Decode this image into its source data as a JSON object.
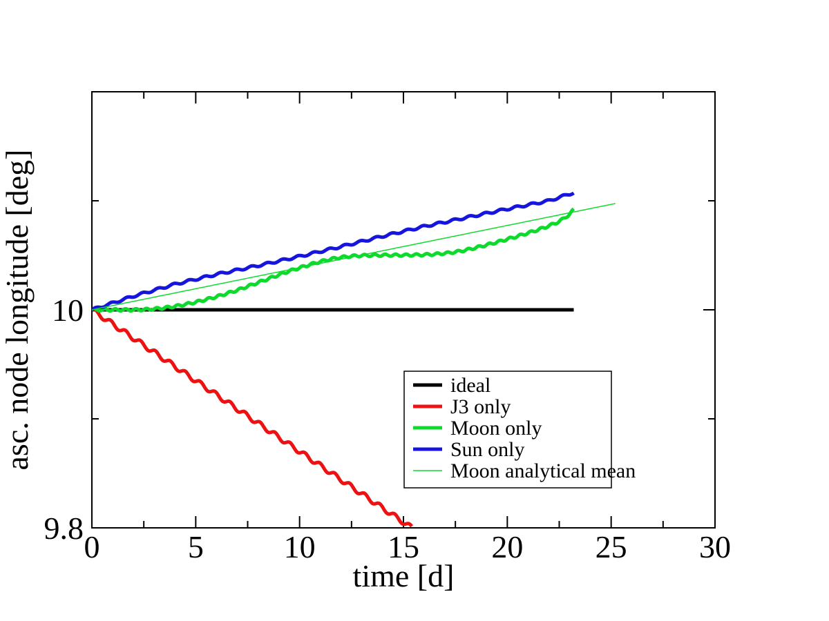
{
  "figure": {
    "background": "#ffffff",
    "frame_color": "#000000"
  },
  "axes": {
    "x": {
      "label": "time [d]",
      "range": [
        0,
        30
      ],
      "major_ticks": [
        0,
        5,
        10,
        15,
        20,
        25,
        30
      ],
      "major_tick_labels": [
        "0",
        "5",
        "10",
        "15",
        "20",
        "25",
        "30"
      ],
      "minor_ticks": [
        2.5,
        7.5,
        12.5,
        17.5,
        22.5,
        27.5
      ]
    },
    "y": {
      "label": "asc. node longitude [deg]",
      "range": [
        9.8,
        10.2
      ],
      "major_ticks": [
        {
          "value": 9.8,
          "label": "9.8"
        },
        {
          "value": 10.0,
          "label": "10"
        }
      ],
      "minor_ticks": [
        9.9,
        10.1
      ]
    }
  },
  "chart_data": {
    "type": "line",
    "title": "",
    "xlabel": "time [d]",
    "ylabel": "asc. node longitude [deg]",
    "xlim": [
      0,
      30
    ],
    "ylim": [
      9.8,
      10.2
    ],
    "grid": false,
    "legend_position": "lower-center",
    "series": [
      {
        "name": "ideal",
        "color": "#000000",
        "width": 5,
        "oscillation": {
          "amplitude_deg": 0,
          "period_d": 1
        },
        "points": [
          [
            0,
            10.0
          ],
          [
            23.2,
            10.0
          ]
        ]
      },
      {
        "name": "J3 only",
        "color": "#ee1111",
        "width": 5,
        "oscillation": {
          "amplitude_deg": 0.0022,
          "period_d": 0.72
        },
        "points": [
          [
            0,
            10.0
          ],
          [
            15.4,
            9.8
          ]
        ]
      },
      {
        "name": "Moon only",
        "color": "#0eda2e",
        "width": 5,
        "oscillation": {
          "amplitude_deg": 0.001,
          "period_d": 0.5
        },
        "points": [
          [
            0,
            10.0
          ],
          [
            2,
            10.0
          ],
          [
            2.5,
            10.0002
          ],
          [
            3,
            10.0008
          ],
          [
            3.5,
            10.0018
          ],
          [
            4,
            10.0032
          ],
          [
            4.5,
            10.005
          ],
          [
            5,
            10.007
          ],
          [
            5.5,
            10.0095
          ],
          [
            6,
            10.012
          ],
          [
            6.5,
            10.015
          ],
          [
            7,
            10.018
          ],
          [
            7.5,
            10.0215
          ],
          [
            8,
            10.025
          ],
          [
            8.5,
            10.0285
          ],
          [
            9,
            10.032
          ],
          [
            9.5,
            10.0355
          ],
          [
            10,
            10.0385
          ],
          [
            10.5,
            10.0415
          ],
          [
            11,
            10.0442
          ],
          [
            11.5,
            10.0465
          ],
          [
            12,
            10.0482
          ],
          [
            12.5,
            10.0492
          ],
          [
            13,
            10.0498
          ],
          [
            14,
            10.0501
          ],
          [
            15,
            10.0501
          ],
          [
            16,
            10.0505
          ],
          [
            16.5,
            10.051
          ],
          [
            17,
            10.0518
          ],
          [
            17.5,
            10.053
          ],
          [
            18,
            10.0548
          ],
          [
            18.5,
            10.057
          ],
          [
            19,
            10.0595
          ],
          [
            19.5,
            10.062
          ],
          [
            20,
            10.0648
          ],
          [
            20.5,
            10.0675
          ],
          [
            21,
            10.0705
          ],
          [
            21.5,
            10.0735
          ],
          [
            22,
            10.077
          ],
          [
            22.5,
            10.081
          ],
          [
            23,
            10.0875
          ],
          [
            23.2,
            10.092
          ]
        ]
      },
      {
        "name": "Sun only",
        "color": "#1515dd",
        "width": 5,
        "oscillation": {
          "amplitude_deg": 0.001,
          "period_d": 0.75
        },
        "points": [
          [
            0,
            10.0
          ],
          [
            2,
            10.0125
          ],
          [
            4,
            10.0235
          ],
          [
            6,
            10.0325
          ],
          [
            8,
            10.0405
          ],
          [
            10,
            10.049
          ],
          [
            12,
            10.058
          ],
          [
            14,
            10.0675
          ],
          [
            16,
            10.0765
          ],
          [
            18,
            10.0845
          ],
          [
            20,
            10.0925
          ],
          [
            22,
            10.1
          ],
          [
            23.2,
            10.1075
          ]
        ]
      },
      {
        "name": "Moon analytical mean",
        "color": "#0eda2e",
        "width": 1.5,
        "oscillation": {
          "amplitude_deg": 0,
          "period_d": 1
        },
        "points": [
          [
            0,
            10.0
          ],
          [
            25.2,
            10.0975
          ]
        ]
      }
    ]
  }
}
